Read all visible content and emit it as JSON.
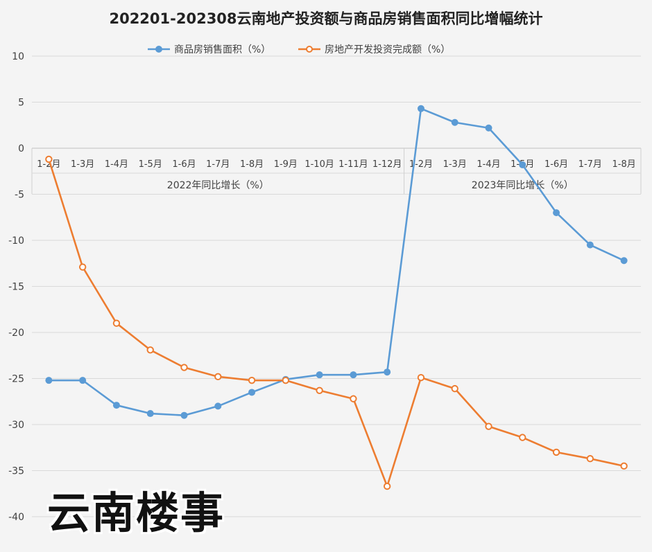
{
  "chart_data": {
    "type": "line",
    "title": "202201-202308云南地产投资额与商品房销售面积同比增幅统计",
    "categories": [
      "1-2月",
      "1-3月",
      "1-4月",
      "1-5月",
      "1-6月",
      "1-7月",
      "1-8月",
      "1-9月",
      "1-10月",
      "1-11月",
      "1-12月",
      "1-2月",
      "1-3月",
      "1-4月",
      "1-5月",
      "1-6月",
      "1-7月",
      "1-8月"
    ],
    "groups": [
      {
        "label": "2022年同比增长（%）",
        "count": 11
      },
      {
        "label": "2023年同比增长（%）",
        "count": 7
      }
    ],
    "series": [
      {
        "name": "商品房销售面积（%）",
        "color": "#5b9bd5",
        "marker": "filled",
        "values": [
          -25.2,
          -25.2,
          -27.9,
          -28.8,
          -29.0,
          -28.0,
          -26.5,
          -25.1,
          -24.6,
          -24.6,
          -24.3,
          4.3,
          2.8,
          2.2,
          -1.8,
          -7.0,
          -10.5,
          -12.2
        ]
      },
      {
        "name": "房地产开发投资完成额（%）",
        "color": "#ed7d31",
        "marker": "hollow",
        "values": [
          -1.2,
          -12.9,
          -19.0,
          -21.9,
          -23.8,
          -24.8,
          -25.2,
          -25.2,
          -26.3,
          -27.2,
          -36.7,
          -24.9,
          -26.1,
          -30.2,
          -31.4,
          -33.0,
          -33.7,
          -34.5
        ]
      }
    ],
    "yticks": [
      10,
      5,
      0,
      -5,
      -10,
      -15,
      -20,
      -25,
      -30,
      -35,
      -40
    ],
    "ylim": [
      -40,
      10
    ],
    "grid": true,
    "legend_position": "top"
  },
  "watermark": "云南楼事"
}
